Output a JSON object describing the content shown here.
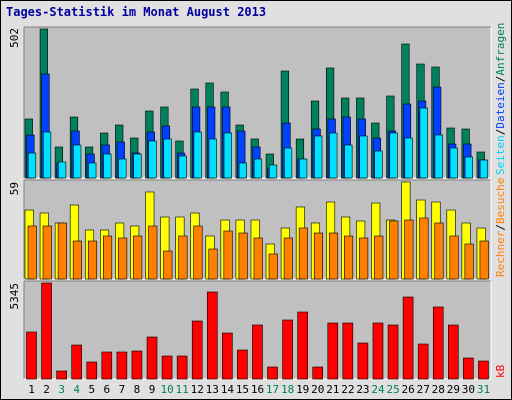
{
  "title": "Tages-Statistik im Monat August 2013",
  "colors": {
    "anfragen": "#00805c",
    "dateien": "#0040ff",
    "seiten": "#00e0ff",
    "besuche": "#ffff00",
    "rechner": "#ff8000",
    "kb": "#ff0000",
    "weekend_tick": "#00805c",
    "weekday_tick": "#000000",
    "title": "#0000a0"
  },
  "side_labels": {
    "top": {
      "anfragen": "Anfragen",
      "dateien": "Dateien",
      "seiten": "Seiten",
      "sep": "/"
    },
    "middle": {
      "besuche": "Besuche",
      "rechner": "Rechner",
      "sep": "/"
    },
    "bottom": {
      "kb": "kB"
    }
  },
  "chart_data": [
    {
      "type": "bar",
      "name": "requests-files-pages",
      "categories": [
        "1",
        "2",
        "3",
        "4",
        "5",
        "6",
        "7",
        "8",
        "9",
        "10",
        "11",
        "12",
        "13",
        "14",
        "15",
        "16",
        "17",
        "18",
        "19",
        "20",
        "21",
        "22",
        "23",
        "24",
        "25",
        "26",
        "27",
        "28",
        "29",
        "30",
        "31"
      ],
      "weekend_days": [
        "3",
        "4",
        "10",
        "11",
        "17",
        "18",
        "24",
        "25",
        "31"
      ],
      "ymax_label": "502",
      "ylim": [
        0,
        502
      ],
      "series": [
        {
          "name": "Anfragen",
          "values": [
            200,
            502,
            105,
            205,
            105,
            150,
            180,
            135,
            225,
            240,
            125,
            300,
            320,
            290,
            180,
            130,
            80,
            360,
            130,
            260,
            370,
            270,
            270,
            185,
            275,
            450,
            385,
            375,
            170,
            165,
            88
          ]
        },
        {
          "name": "Dateien",
          "values": [
            145,
            350,
            50,
            160,
            80,
            110,
            120,
            85,
            155,
            175,
            85,
            240,
            240,
            240,
            160,
            105,
            35,
            185,
            65,
            165,
            200,
            205,
            200,
            135,
            160,
            250,
            260,
            305,
            115,
            115,
            60
          ]
        },
        {
          "name": "Seiten",
          "values": [
            85,
            155,
            55,
            110,
            50,
            80,
            65,
            80,
            125,
            130,
            75,
            155,
            130,
            150,
            50,
            65,
            45,
            100,
            65,
            140,
            150,
            110,
            140,
            90,
            150,
            135,
            235,
            145,
            100,
            70,
            60
          ]
        }
      ]
    },
    {
      "type": "bar",
      "name": "visits-hosts",
      "categories": [
        "1",
        "2",
        "3",
        "4",
        "5",
        "6",
        "7",
        "8",
        "9",
        "10",
        "11",
        "12",
        "13",
        "14",
        "15",
        "16",
        "17",
        "18",
        "19",
        "20",
        "21",
        "22",
        "23",
        "24",
        "25",
        "26",
        "27",
        "28",
        "29",
        "30",
        "31"
      ],
      "ymax_label": "59",
      "ylim": [
        0,
        59
      ],
      "series": [
        {
          "name": "Besuche",
          "values": [
            42,
            40,
            34,
            45,
            30,
            30,
            34,
            32,
            53,
            38,
            38,
            40,
            26,
            36,
            36,
            36,
            21,
            31,
            44,
            34,
            47,
            38,
            35,
            46,
            36,
            59,
            48,
            47,
            42,
            34,
            31
          ]
        },
        {
          "name": "Rechner",
          "values": [
            32,
            32,
            34,
            23,
            23,
            26,
            25,
            26,
            32,
            17,
            26,
            32,
            18,
            29,
            28,
            25,
            15,
            25,
            31,
            28,
            28,
            26,
            25,
            26,
            35,
            36,
            37,
            34,
            26,
            21,
            23
          ]
        }
      ]
    },
    {
      "type": "bar",
      "name": "kb",
      "categories": [
        "1",
        "2",
        "3",
        "4",
        "5",
        "6",
        "7",
        "8",
        "9",
        "10",
        "11",
        "12",
        "13",
        "14",
        "15",
        "16",
        "17",
        "18",
        "19",
        "20",
        "21",
        "22",
        "23",
        "24",
        "25",
        "26",
        "27",
        "28",
        "29",
        "30",
        "31"
      ],
      "ymax_label": "5345",
      "ylim": [
        0,
        5345
      ],
      "series": [
        {
          "name": "kB",
          "values": [
            2600,
            5345,
            440,
            1900,
            940,
            1500,
            1500,
            1560,
            2350,
            1300,
            1260,
            3240,
            4830,
            2540,
            1600,
            3030,
            680,
            3300,
            3730,
            650,
            3100,
            3100,
            1990,
            3100,
            3000,
            4560,
            1950,
            4000,
            3030,
            1180,
            1030
          ]
        }
      ]
    }
  ]
}
